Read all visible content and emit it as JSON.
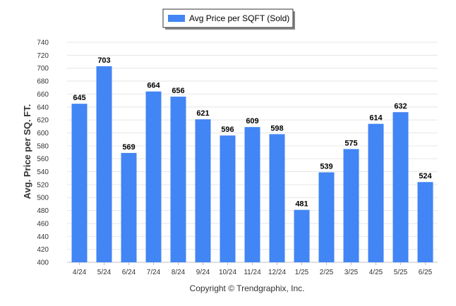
{
  "chart_data": {
    "type": "bar",
    "categories": [
      "4/24",
      "5/24",
      "6/24",
      "7/24",
      "8/24",
      "9/24",
      "10/24",
      "11/24",
      "12/24",
      "1/25",
      "2/25",
      "3/25",
      "4/25",
      "5/25",
      "6/25"
    ],
    "series": [
      {
        "name": "Avg Price per SQFT (Sold)",
        "values": [
          645,
          703,
          569,
          664,
          656,
          621,
          596,
          609,
          598,
          481,
          539,
          575,
          614,
          632,
          524
        ],
        "color": "#4285f4"
      }
    ],
    "ylabel": "Avg. Price per SQ. FT.",
    "xlabel": "",
    "ylim": [
      400,
      740
    ],
    "yticks": [
      400,
      420,
      440,
      460,
      480,
      500,
      520,
      540,
      560,
      580,
      600,
      620,
      640,
      660,
      680,
      700,
      720,
      740
    ],
    "grid": true,
    "legend_position": "top-center",
    "data_labels": true
  },
  "footer": {
    "copyright": "Copyright © Trendgraphix, Inc."
  }
}
